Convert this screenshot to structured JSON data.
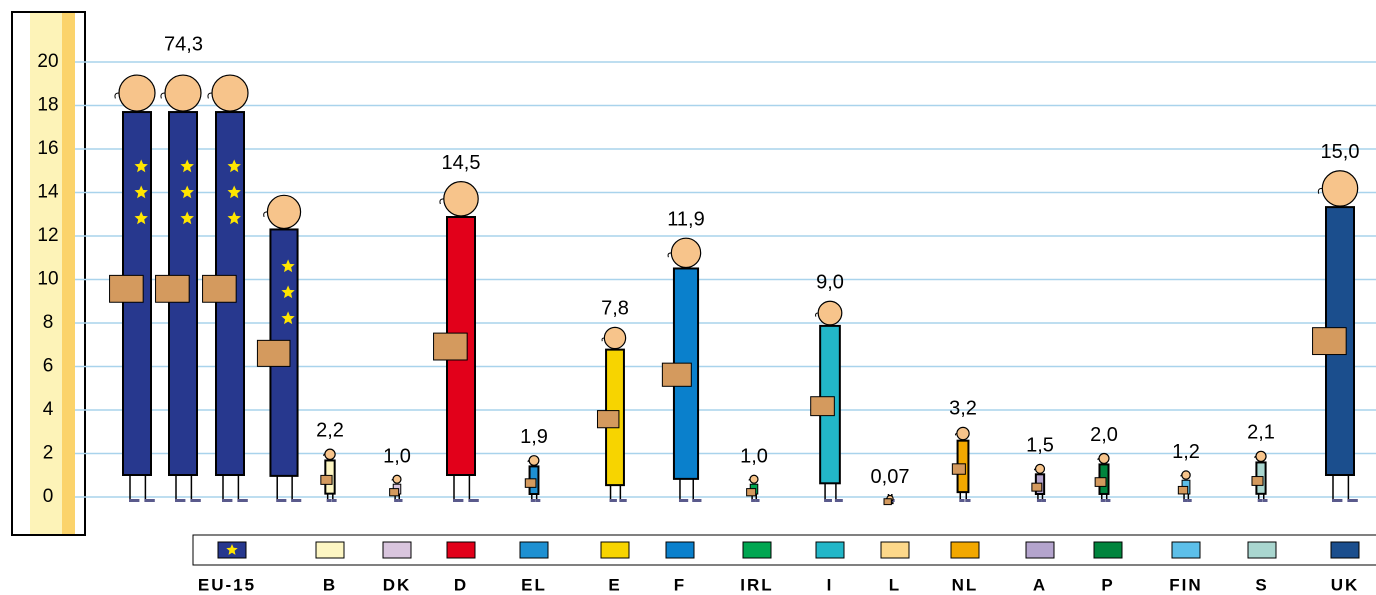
{
  "chart_data": {
    "type": "pictogram",
    "categories": [
      "EU-15",
      "B",
      "DK",
      "D",
      "EL",
      "E",
      "F",
      "IRL",
      "I",
      "L",
      "NL",
      "A",
      "P",
      "FIN",
      "S",
      "UK"
    ],
    "values": [
      74.3,
      2.2,
      1.0,
      14.5,
      1.9,
      7.8,
      11.9,
      1.0,
      9.0,
      0.07,
      3.2,
      1.5,
      2.0,
      1.2,
      2.1,
      15.0
    ],
    "value_labels": [
      "74,3",
      "2,2",
      "1,0",
      "14,5",
      "1,9",
      "7,8",
      "11,9",
      "1,0",
      "9,0",
      "0,07",
      "3,2",
      "1,5",
      "2,0",
      "1,2",
      "2,1",
      "15,0"
    ],
    "colors": [
      "#27388e",
      "#fdf6c3",
      "#d9c5de",
      "#e2001a",
      "#1e90d2",
      "#f7d400",
      "#0a80cc",
      "#00a651",
      "#22b6c8",
      "#fdd88a",
      "#f2a800",
      "#b4a4cd",
      "#00843d",
      "#5cbfe9",
      "#a9d6cf",
      "#1b4e8d"
    ],
    "ylim": [
      0,
      20
    ],
    "yticks": [
      0,
      2,
      4,
      6,
      8,
      10,
      12,
      14,
      16,
      18,
      20
    ],
    "grid": true
  }
}
